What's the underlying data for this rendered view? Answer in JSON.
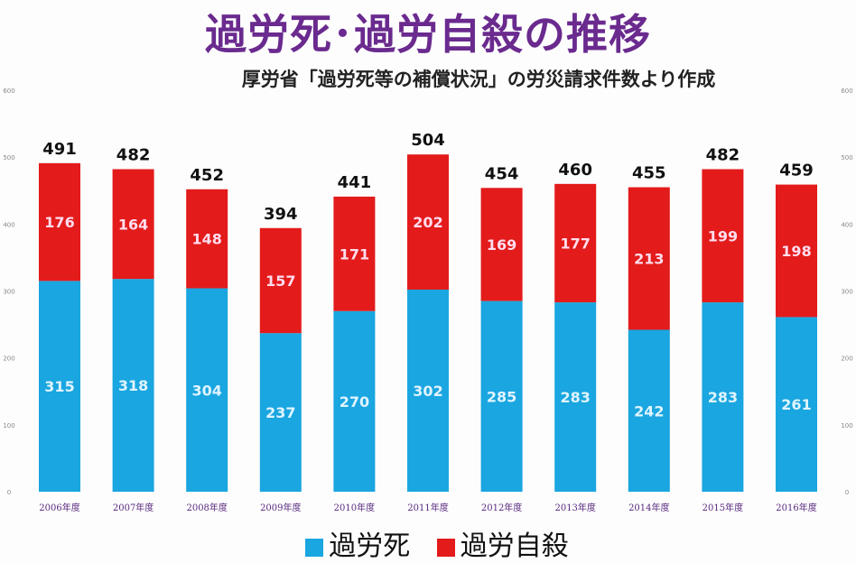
{
  "chart_data": {
    "type": "bar",
    "stacked": true,
    "title": "過労死･過労自殺の推移",
    "subtitle": "厚労省「過労死等の補償状況」の労災請求件数より作成",
    "categories": [
      "2006年度",
      "2007年度",
      "2008年度",
      "2009年度",
      "2010年度",
      "2011年度",
      "2012年度",
      "2013年度",
      "2014年度",
      "2015年度",
      "2016年度"
    ],
    "series": [
      {
        "name": "過労死",
        "color": "#1aa6e0",
        "values": [
          315,
          318,
          304,
          237,
          270,
          302,
          285,
          283,
          242,
          283,
          261
        ]
      },
      {
        "name": "過労自殺",
        "color": "#e31b1b",
        "values": [
          176,
          164,
          148,
          157,
          171,
          202,
          169,
          177,
          213,
          199,
          198
        ]
      }
    ],
    "totals": [
      491,
      482,
      452,
      394,
      441,
      504,
      454,
      460,
      455,
      482,
      459
    ],
    "ylim": [
      0,
      600
    ],
    "yticks": [
      0,
      100,
      200,
      300,
      400,
      500,
      600
    ],
    "legend": "bottom"
  }
}
